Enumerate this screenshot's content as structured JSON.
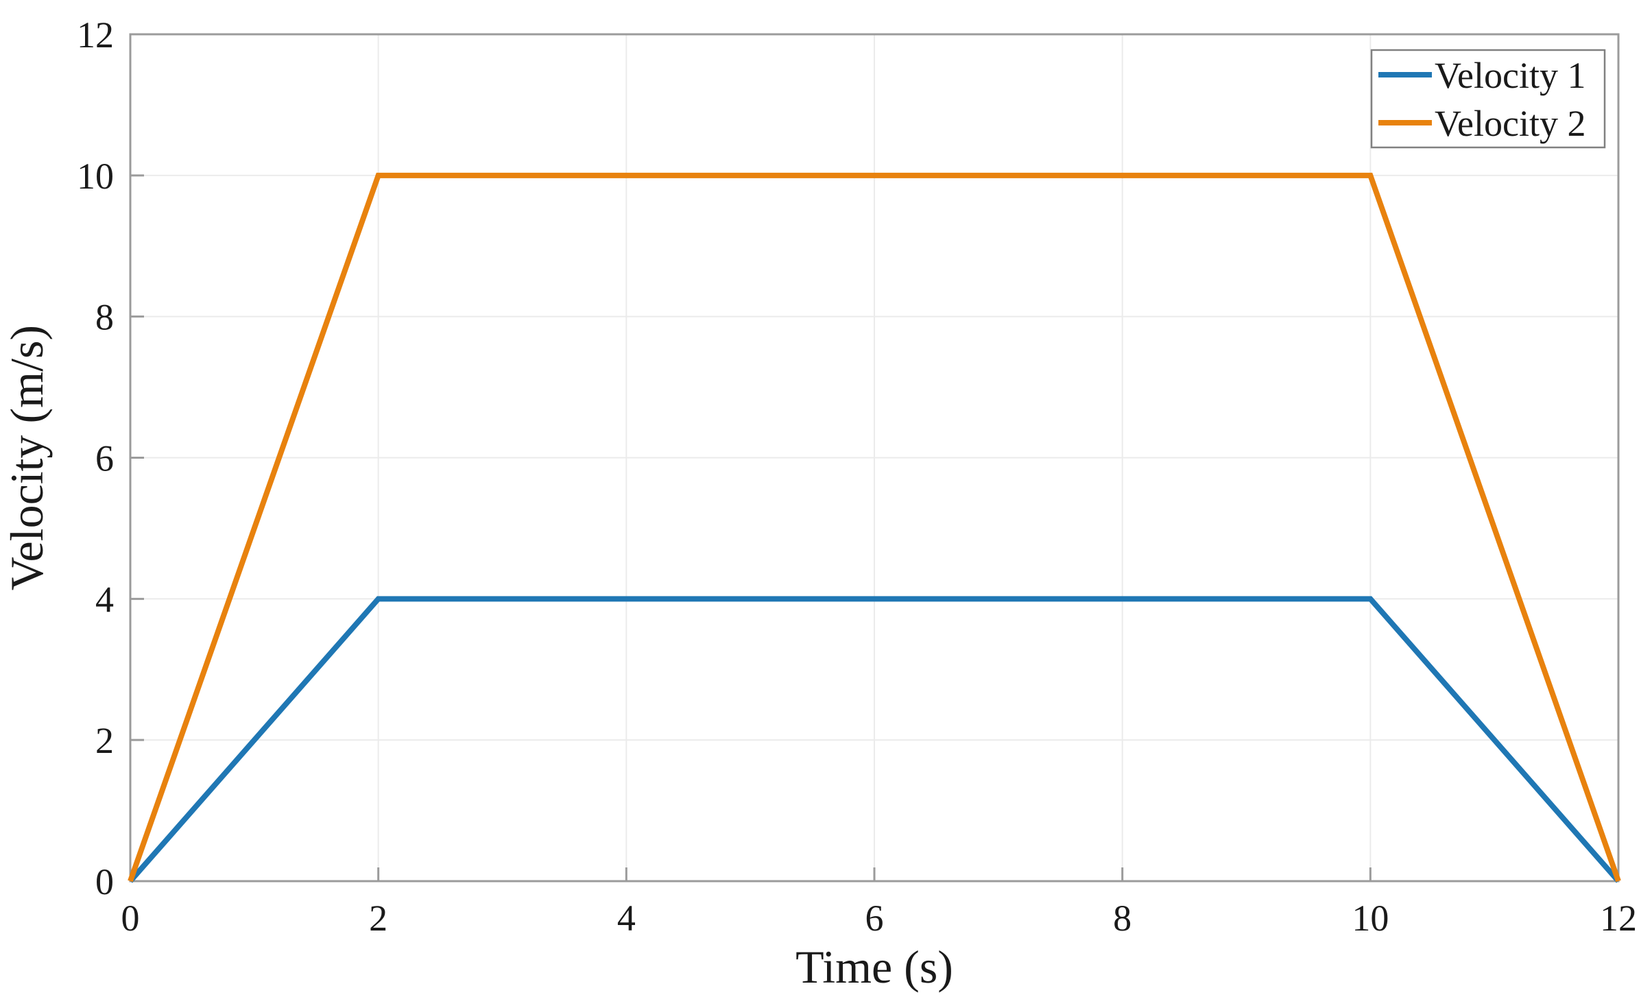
{
  "chart_data": {
    "type": "line",
    "title": "",
    "xlabel": "Time (s)",
    "ylabel": "Velocity (m/s)",
    "xlim": [
      0,
      12
    ],
    "ylim": [
      0,
      12
    ],
    "xticks": [
      0,
      2,
      4,
      6,
      8,
      10,
      12
    ],
    "yticks": [
      0,
      2,
      4,
      6,
      8,
      10,
      12
    ],
    "grid": true,
    "legend": {
      "position": "top-right",
      "entries": [
        "Velocity 1",
        "Velocity 2"
      ]
    },
    "series": [
      {
        "name": "Velocity 1",
        "color": "#1f77b4",
        "x": [
          0,
          2,
          10,
          12
        ],
        "y": [
          0,
          4,
          4,
          0
        ]
      },
      {
        "name": "Velocity 2",
        "color": "#e8820e",
        "x": [
          0,
          2,
          10,
          12
        ],
        "y": [
          0,
          10,
          10,
          0
        ]
      }
    ],
    "colors": {
      "grid": "#ebebeb",
      "axis_box": "#9b9b9b",
      "tick": "#9b9b9b",
      "text": "#1a1a1a",
      "legend_border": "#808080",
      "legend_background": "#ffffff"
    }
  }
}
